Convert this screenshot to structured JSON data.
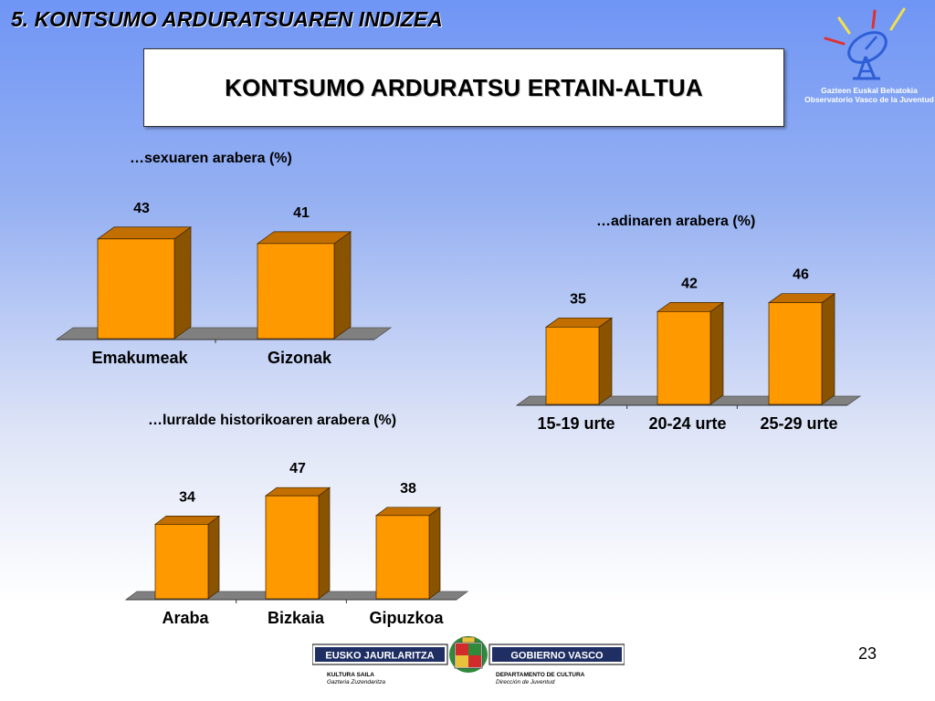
{
  "slide": {
    "title": "5. KONTSUMO ARDURATSUAREN INDIZEA",
    "box_title": "KONTSUMO ARDURATSU ERTAIN-ALTUA",
    "page_number": "23"
  },
  "observatory": {
    "line1": "Gazteen Euskal Behatokia",
    "line2": "Observatorio Vasco de la Juventud"
  },
  "government": {
    "left_name": "EUSKO JAURLARITZA",
    "right_name": "GOBIERNO VASCO",
    "left_dept": "KULTURA SAILA",
    "left_sub": "Gazteria Zuzendaritza",
    "right_dept": "DEPARTAMENTO DE CULTURA",
    "right_sub": "Dirección de Juventud"
  },
  "colors": {
    "bar_front": "#ff9900",
    "bar_side": "#8a5300",
    "bar_top": "#c26f00",
    "floor": "#808080",
    "logo_accent": "#2e5fd6"
  },
  "chart_data": [
    {
      "type": "bar",
      "title": "…sexuaren arabera (%)",
      "categories": [
        "Emakumeak",
        "Gizonak"
      ],
      "values": [
        43,
        41
      ],
      "ylim": [
        0,
        50
      ]
    },
    {
      "type": "bar",
      "title": "…adinaren arabera (%)",
      "categories": [
        "15-19 urte",
        "20-24 urte",
        "25-29 urte"
      ],
      "values": [
        35,
        42,
        46
      ],
      "ylim": [
        0,
        50
      ]
    },
    {
      "type": "bar",
      "title": "…lurralde historikoaren arabera (%)",
      "categories": [
        "Araba",
        "Bizkaia",
        "Gipuzkoa"
      ],
      "values": [
        34,
        47,
        38
      ],
      "ylim": [
        0,
        50
      ]
    }
  ]
}
